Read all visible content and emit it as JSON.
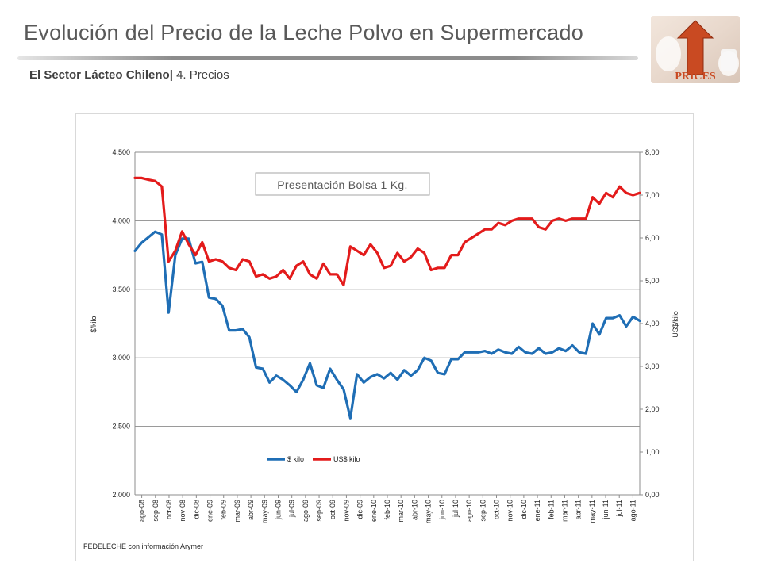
{
  "header": {
    "title": "Evolución del Precio de la Leche Polvo en Supermercado",
    "subtitle_bold": "El Sector Lácteo Chileno|",
    "subtitle_rest": " 4. Precios"
  },
  "logo": {
    "label": "PRICES",
    "icon": "arrow-up-icon"
  },
  "source": "FEDELECHE con información Arymer",
  "chart_data": {
    "type": "line",
    "annotation": "Presentación Bolsa 1 Kg.",
    "ylabel_left": "$/kilo",
    "ylabel_right": "US$/kilo",
    "ylim_left": [
      2000,
      4500
    ],
    "ylim_right": [
      0,
      8
    ],
    "yticks_left": [
      "2.000",
      "2.500",
      "3.000",
      "3.500",
      "4.000",
      "4.500"
    ],
    "yticks_right": [
      "0,00",
      "1,00",
      "2,00",
      "3,00",
      "4,00",
      "5,00",
      "6,00",
      "7,00",
      "8,00"
    ],
    "xtick_labels": [
      "ago-08",
      "sep-08",
      "oct-08",
      "nov-08",
      "dic-08",
      "ene-09",
      "feb-09",
      "mar-09",
      "abr-09",
      "may-09",
      "jun-09",
      "jul-09",
      "ago-09",
      "sep-09",
      "oct-09",
      "nov-09",
      "dic-09",
      "ene-10",
      "feb-10",
      "mar-10",
      "abr-10",
      "may-10",
      "jun-10",
      "jul-10",
      "ago-10",
      "sep-10",
      "oct-10",
      "nov-10",
      "dic-10",
      "ene-11",
      "feb-11",
      "mar-11",
      "abr-11",
      "may-11",
      "jun-11",
      "jul-11",
      "ago-11"
    ],
    "legend_position": "bottom-center",
    "grid": "horizontal",
    "series": [
      {
        "name": "$ kilo",
        "axis": "left",
        "color": "#1f6eb5",
        "values": [
          3780,
          3840,
          3880,
          3920,
          3900,
          3330,
          3750,
          3870,
          3870,
          3690,
          3700,
          3440,
          3430,
          3380,
          3200,
          3200,
          3210,
          3150,
          2930,
          2920,
          2820,
          2870,
          2840,
          2800,
          2750,
          2840,
          2960,
          2800,
          2780,
          2920,
          2840,
          2770,
          2560,
          2880,
          2820,
          2860,
          2880,
          2850,
          2890,
          2840,
          2910,
          2870,
          2910,
          3000,
          2980,
          2890,
          2880,
          2990,
          2990,
          3040,
          3040,
          3040,
          3050,
          3030,
          3060,
          3040,
          3030,
          3080,
          3040,
          3030,
          3070,
          3030,
          3040,
          3070,
          3050,
          3090,
          3040,
          3030,
          3250,
          3170,
          3290,
          3290,
          3310,
          3230,
          3300,
          3270
        ]
      },
      {
        "name": "US$ kilo",
        "axis": "right",
        "color": "#e31b1b",
        "values": [
          7.4,
          7.4,
          7.36,
          7.33,
          7.2,
          5.45,
          5.7,
          6.15,
          5.85,
          5.6,
          5.9,
          5.45,
          5.5,
          5.45,
          5.3,
          5.25,
          5.5,
          5.45,
          5.1,
          5.15,
          5.05,
          5.1,
          5.25,
          5.05,
          5.35,
          5.45,
          5.15,
          5.05,
          5.4,
          5.15,
          5.15,
          4.9,
          5.8,
          5.7,
          5.6,
          5.85,
          5.65,
          5.3,
          5.35,
          5.65,
          5.45,
          5.55,
          5.75,
          5.65,
          5.25,
          5.3,
          5.3,
          5.6,
          5.6,
          5.9,
          6.0,
          6.1,
          6.2,
          6.2,
          6.35,
          6.3,
          6.4,
          6.45,
          6.45,
          6.45,
          6.25,
          6.2,
          6.4,
          6.45,
          6.4,
          6.45,
          6.45,
          6.45,
          6.95,
          6.8,
          7.05,
          6.95,
          7.2,
          7.05,
          7.0,
          7.05
        ]
      }
    ]
  }
}
